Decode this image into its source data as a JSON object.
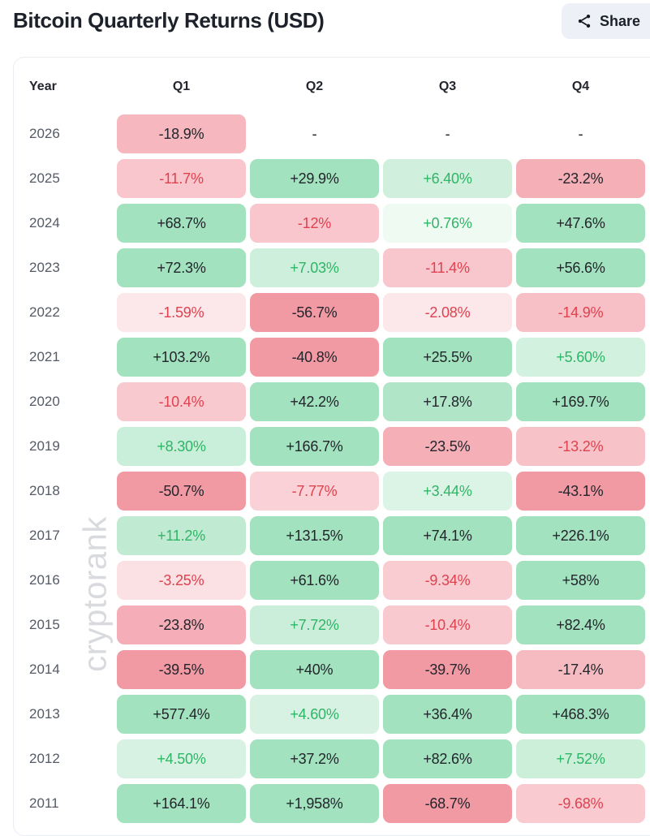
{
  "header": {
    "title": "Bitcoin Quarterly Returns (USD)",
    "share": {
      "label": "Share"
    }
  },
  "watermark": "cryptorank",
  "colors": {
    "positive_base": "#2fbd6b",
    "negative_base": "#e8475a",
    "positive_text": "#2fb566",
    "negative_text": "#e0414e",
    "dark_text": "#22252c",
    "year_text": "#545b66",
    "header_text": "#23262e",
    "share_bg": "#edf0f7",
    "card_border": "#e9ecf1"
  },
  "chart_data": {
    "type": "table",
    "title": "Bitcoin Quarterly Returns (USD)",
    "columns": [
      "Year",
      "Q1",
      "Q2",
      "Q3",
      "Q4"
    ],
    "rows": [
      {
        "year": "2026",
        "values": [
          "-18.9%",
          "-",
          "-",
          "-"
        ]
      },
      {
        "year": "2025",
        "values": [
          "-11.7%",
          "+29.9%",
          "+6.40%",
          "-23.2%"
        ]
      },
      {
        "year": "2024",
        "values": [
          "+68.7%",
          "-12%",
          "+0.76%",
          "+47.6%"
        ]
      },
      {
        "year": "2023",
        "values": [
          "+72.3%",
          "+7.03%",
          "-11.4%",
          "+56.6%"
        ]
      },
      {
        "year": "2022",
        "values": [
          "-1.59%",
          "-56.7%",
          "-2.08%",
          "-14.9%"
        ]
      },
      {
        "year": "2021",
        "values": [
          "+103.2%",
          "-40.8%",
          "+25.5%",
          "+5.60%"
        ]
      },
      {
        "year": "2020",
        "values": [
          "-10.4%",
          "+42.2%",
          "+17.8%",
          "+169.7%"
        ]
      },
      {
        "year": "2019",
        "values": [
          "+8.30%",
          "+166.7%",
          "-23.5%",
          "-13.2%"
        ]
      },
      {
        "year": "2018",
        "values": [
          "-50.7%",
          "-7.77%",
          "+3.44%",
          "-43.1%"
        ]
      },
      {
        "year": "2017",
        "values": [
          "+11.2%",
          "+131.5%",
          "+74.1%",
          "+226.1%"
        ]
      },
      {
        "year": "2016",
        "values": [
          "-3.25%",
          "+61.6%",
          "-9.34%",
          "+58%"
        ]
      },
      {
        "year": "2015",
        "values": [
          "-23.8%",
          "+7.72%",
          "-10.4%",
          "+82.4%"
        ]
      },
      {
        "year": "2014",
        "values": [
          "-39.5%",
          "+40%",
          "-39.7%",
          "-17.4%"
        ]
      },
      {
        "year": "2013",
        "values": [
          "+577.4%",
          "+4.60%",
          "+36.4%",
          "+468.3%"
        ]
      },
      {
        "year": "2012",
        "values": [
          "+4.50%",
          "+37.2%",
          "+82.6%",
          "+7.52%"
        ]
      },
      {
        "year": "2011",
        "values": [
          "+164.1%",
          "+1,958%",
          "-68.7%",
          "-9.68%"
        ]
      }
    ]
  }
}
